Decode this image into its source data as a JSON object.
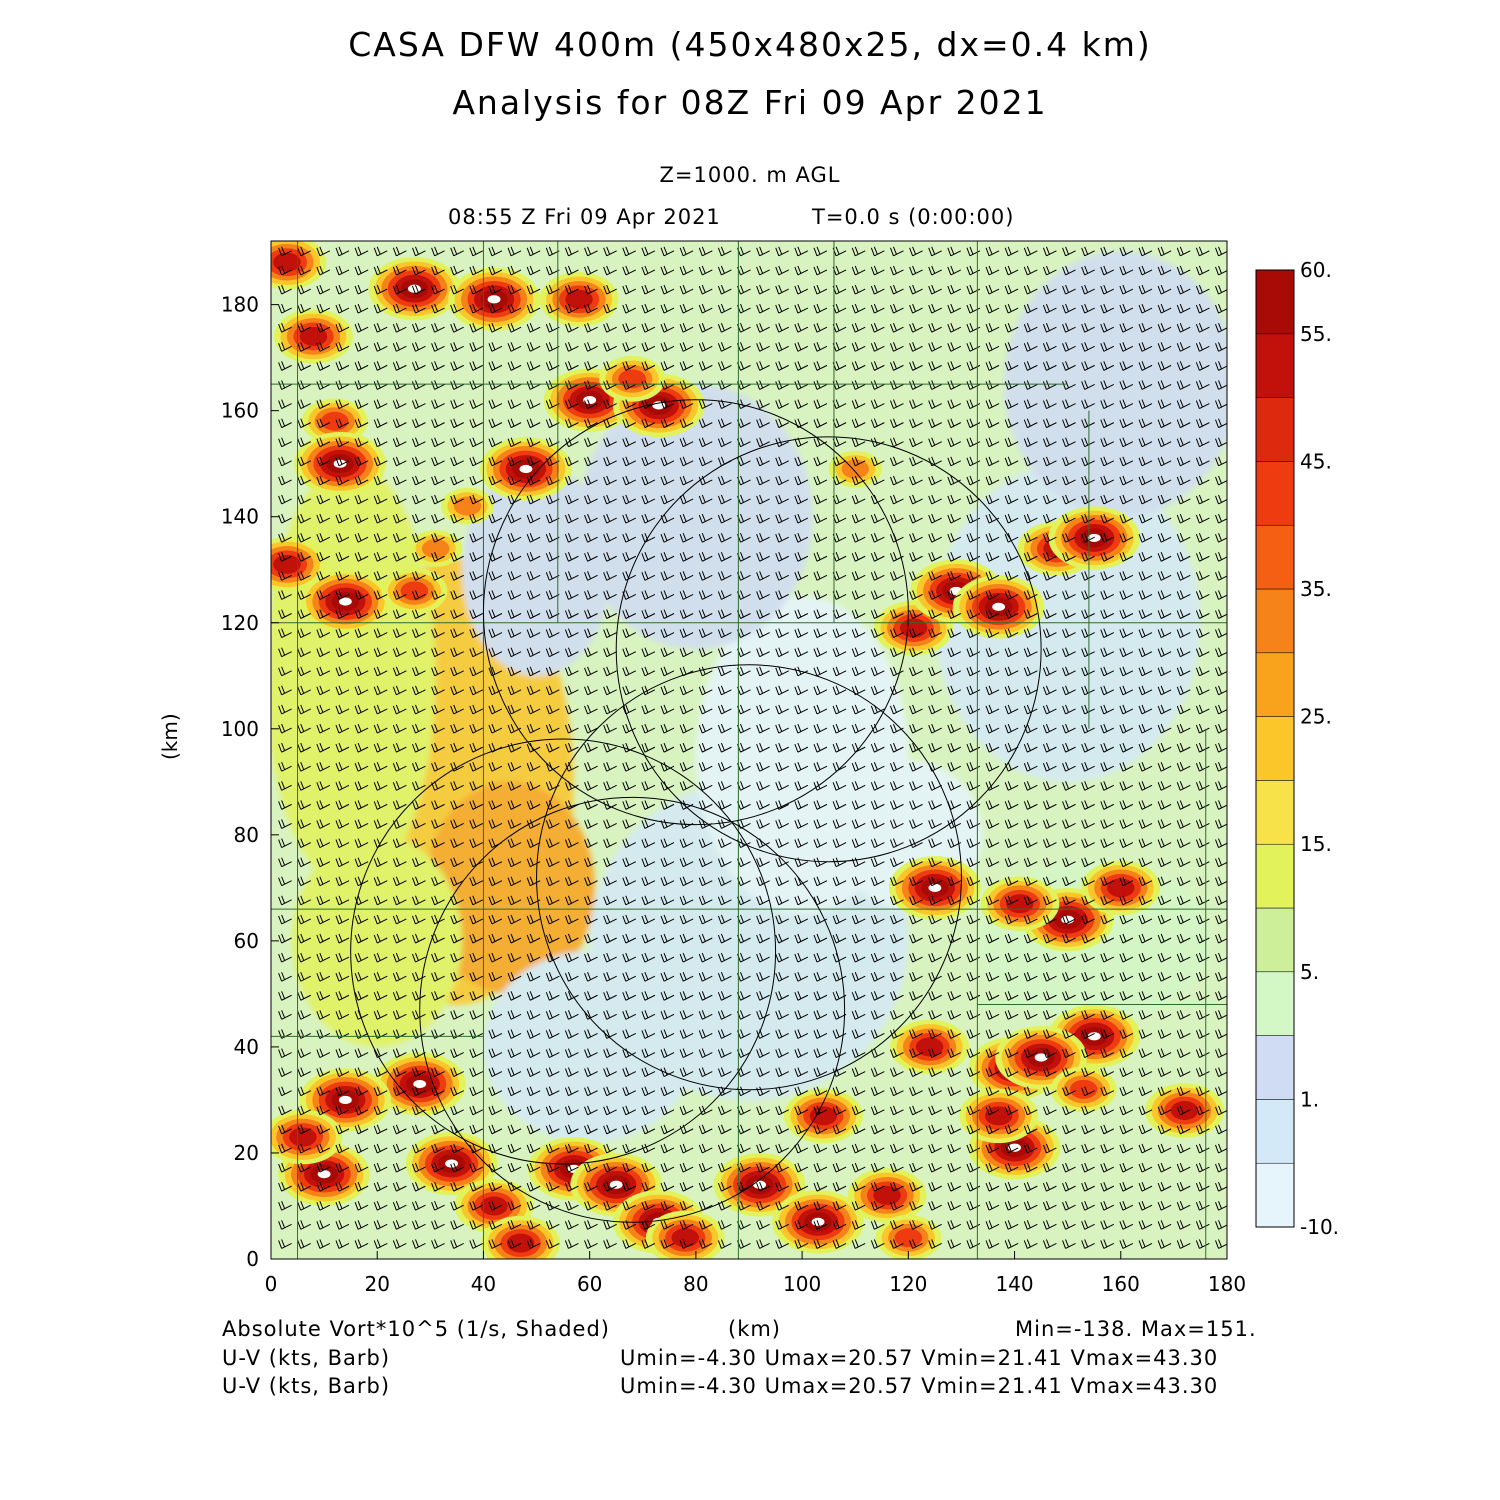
{
  "header": {
    "title_line1": "CASA DFW 400m (450x480x25, dx=0.4 km)",
    "title_line2": "Analysis for 08Z Fri 09 Apr 2021",
    "level": "Z=1000. m AGL",
    "valid_time": "08:55 Z Fri 09 Apr 2021",
    "forecast_time": "T=0.0 s (0:00:00)"
  },
  "footer": {
    "field_label": "Absolute Vort*10^5 (1/s, Shaded)",
    "x_unit": "(km)",
    "minmax": "Min=-138. Max=151.",
    "barb1_label": "U-V (kts, Barb)",
    "barb1_stats": "Umin=-4.30 Umax=20.57 Vmin=21.41 Vmax=43.30",
    "barb2_label": "U-V (kts, Barb)",
    "barb2_stats": "Umin=-4.30 Umax=20.57 Vmin=21.41 Vmax=43.30"
  },
  "chart_data": {
    "type": "heatmap",
    "title": "CASA DFW 400m (450x480x25, dx=0.4 km)",
    "subtitle": "Analysis for 08Z Fri 09 Apr 2021",
    "xlabel": "",
    "ylabel": "(km)",
    "xlim": [
      0,
      180
    ],
    "ylim": [
      0,
      192
    ],
    "xticks": [
      0,
      20,
      40,
      60,
      80,
      100,
      120,
      140,
      160,
      180
    ],
    "yticks": [
      0,
      20,
      40,
      60,
      80,
      100,
      120,
      140,
      160,
      180
    ],
    "field": "Absolute Vort*10^5 (1/s, Shaded)",
    "field_min": -138,
    "field_max": 151,
    "wind_barbs": {
      "umin": -4.3,
      "umax": 20.57,
      "vmin": 21.41,
      "vmax": 43.3,
      "units": "kts"
    },
    "colorbar": {
      "levels": [
        -10,
        0,
        1,
        3,
        5,
        10,
        15,
        20,
        25,
        30,
        35,
        40,
        45,
        50,
        55,
        60
      ],
      "labels": [
        "-10.",
        "1.",
        "5.",
        "15.",
        "25.",
        "35.",
        "45.",
        "55.",
        "60."
      ],
      "label_values": [
        -10,
        1,
        5,
        15,
        25,
        35,
        45,
        55,
        60
      ],
      "colors": [
        "#e6f4fc",
        "#d4e9f8",
        "#d0dcf4",
        "#d4f7c6",
        "#cdef9a",
        "#e2f25a",
        "#f8e24a",
        "#fbc62a",
        "#f9a31c",
        "#f6821a",
        "#f55f14",
        "#ef3b10",
        "#dd2a0e",
        "#c2100a",
        "#a80a06"
      ]
    },
    "radar_rings": [
      {
        "center": [
          80,
          122
        ],
        "radius": 40
      },
      {
        "center": [
          105,
          115
        ],
        "radius": 40
      },
      {
        "center": [
          55,
          58
        ],
        "radius": 40
      },
      {
        "center": [
          90,
          72
        ],
        "radius": 40
      },
      {
        "center": [
          68,
          47
        ],
        "radius": 40
      }
    ],
    "vorticity_cores": [
      {
        "x": 27,
        "y": 183,
        "v": 60
      },
      {
        "x": 42,
        "y": 181,
        "v": 60
      },
      {
        "x": 58,
        "y": 181,
        "v": 50
      },
      {
        "x": 8,
        "y": 174,
        "v": 55
      },
      {
        "x": 3,
        "y": 188,
        "v": 55
      },
      {
        "x": 12,
        "y": 158,
        "v": 40
      },
      {
        "x": 13,
        "y": 150,
        "v": 60
      },
      {
        "x": 48,
        "y": 149,
        "v": 60
      },
      {
        "x": 60,
        "y": 162,
        "v": 60
      },
      {
        "x": 73,
        "y": 161,
        "v": 60
      },
      {
        "x": 68,
        "y": 166,
        "v": 40
      },
      {
        "x": 37,
        "y": 142,
        "v": 30
      },
      {
        "x": 31,
        "y": 134,
        "v": 35
      },
      {
        "x": 3,
        "y": 131,
        "v": 50
      },
      {
        "x": 14,
        "y": 124,
        "v": 60
      },
      {
        "x": 27,
        "y": 126,
        "v": 40
      },
      {
        "x": 121,
        "y": 119,
        "v": 55
      },
      {
        "x": 129,
        "y": 126,
        "v": 60
      },
      {
        "x": 137,
        "y": 123,
        "v": 60
      },
      {
        "x": 148,
        "y": 134,
        "v": 50
      },
      {
        "x": 155,
        "y": 136,
        "v": 60
      },
      {
        "x": 110,
        "y": 149,
        "v": 30
      },
      {
        "x": 125,
        "y": 70,
        "v": 60
      },
      {
        "x": 150,
        "y": 64,
        "v": 60
      },
      {
        "x": 141,
        "y": 67,
        "v": 50
      },
      {
        "x": 160,
        "y": 70,
        "v": 50
      },
      {
        "x": 155,
        "y": 42,
        "v": 60
      },
      {
        "x": 140,
        "y": 36,
        "v": 60
      },
      {
        "x": 145,
        "y": 38,
        "v": 60
      },
      {
        "x": 124,
        "y": 40,
        "v": 50
      },
      {
        "x": 140,
        "y": 21,
        "v": 60
      },
      {
        "x": 137,
        "y": 27,
        "v": 55
      },
      {
        "x": 172,
        "y": 28,
        "v": 50
      },
      {
        "x": 153,
        "y": 32,
        "v": 45
      },
      {
        "x": 28,
        "y": 33,
        "v": 60
      },
      {
        "x": 14,
        "y": 30,
        "v": 60
      },
      {
        "x": 10,
        "y": 16,
        "v": 60
      },
      {
        "x": 6,
        "y": 23,
        "v": 55
      },
      {
        "x": 34,
        "y": 18,
        "v": 60
      },
      {
        "x": 42,
        "y": 10,
        "v": 55
      },
      {
        "x": 57,
        "y": 17,
        "v": 60
      },
      {
        "x": 65,
        "y": 14,
        "v": 60
      },
      {
        "x": 73,
        "y": 7,
        "v": 60
      },
      {
        "x": 92,
        "y": 14,
        "v": 60
      },
      {
        "x": 103,
        "y": 7,
        "v": 60
      },
      {
        "x": 104,
        "y": 27,
        "v": 55
      },
      {
        "x": 116,
        "y": 12,
        "v": 55
      },
      {
        "x": 78,
        "y": 4,
        "v": 55
      },
      {
        "x": 47,
        "y": 3,
        "v": 50
      },
      {
        "x": 120,
        "y": 4,
        "v": 45
      }
    ]
  }
}
